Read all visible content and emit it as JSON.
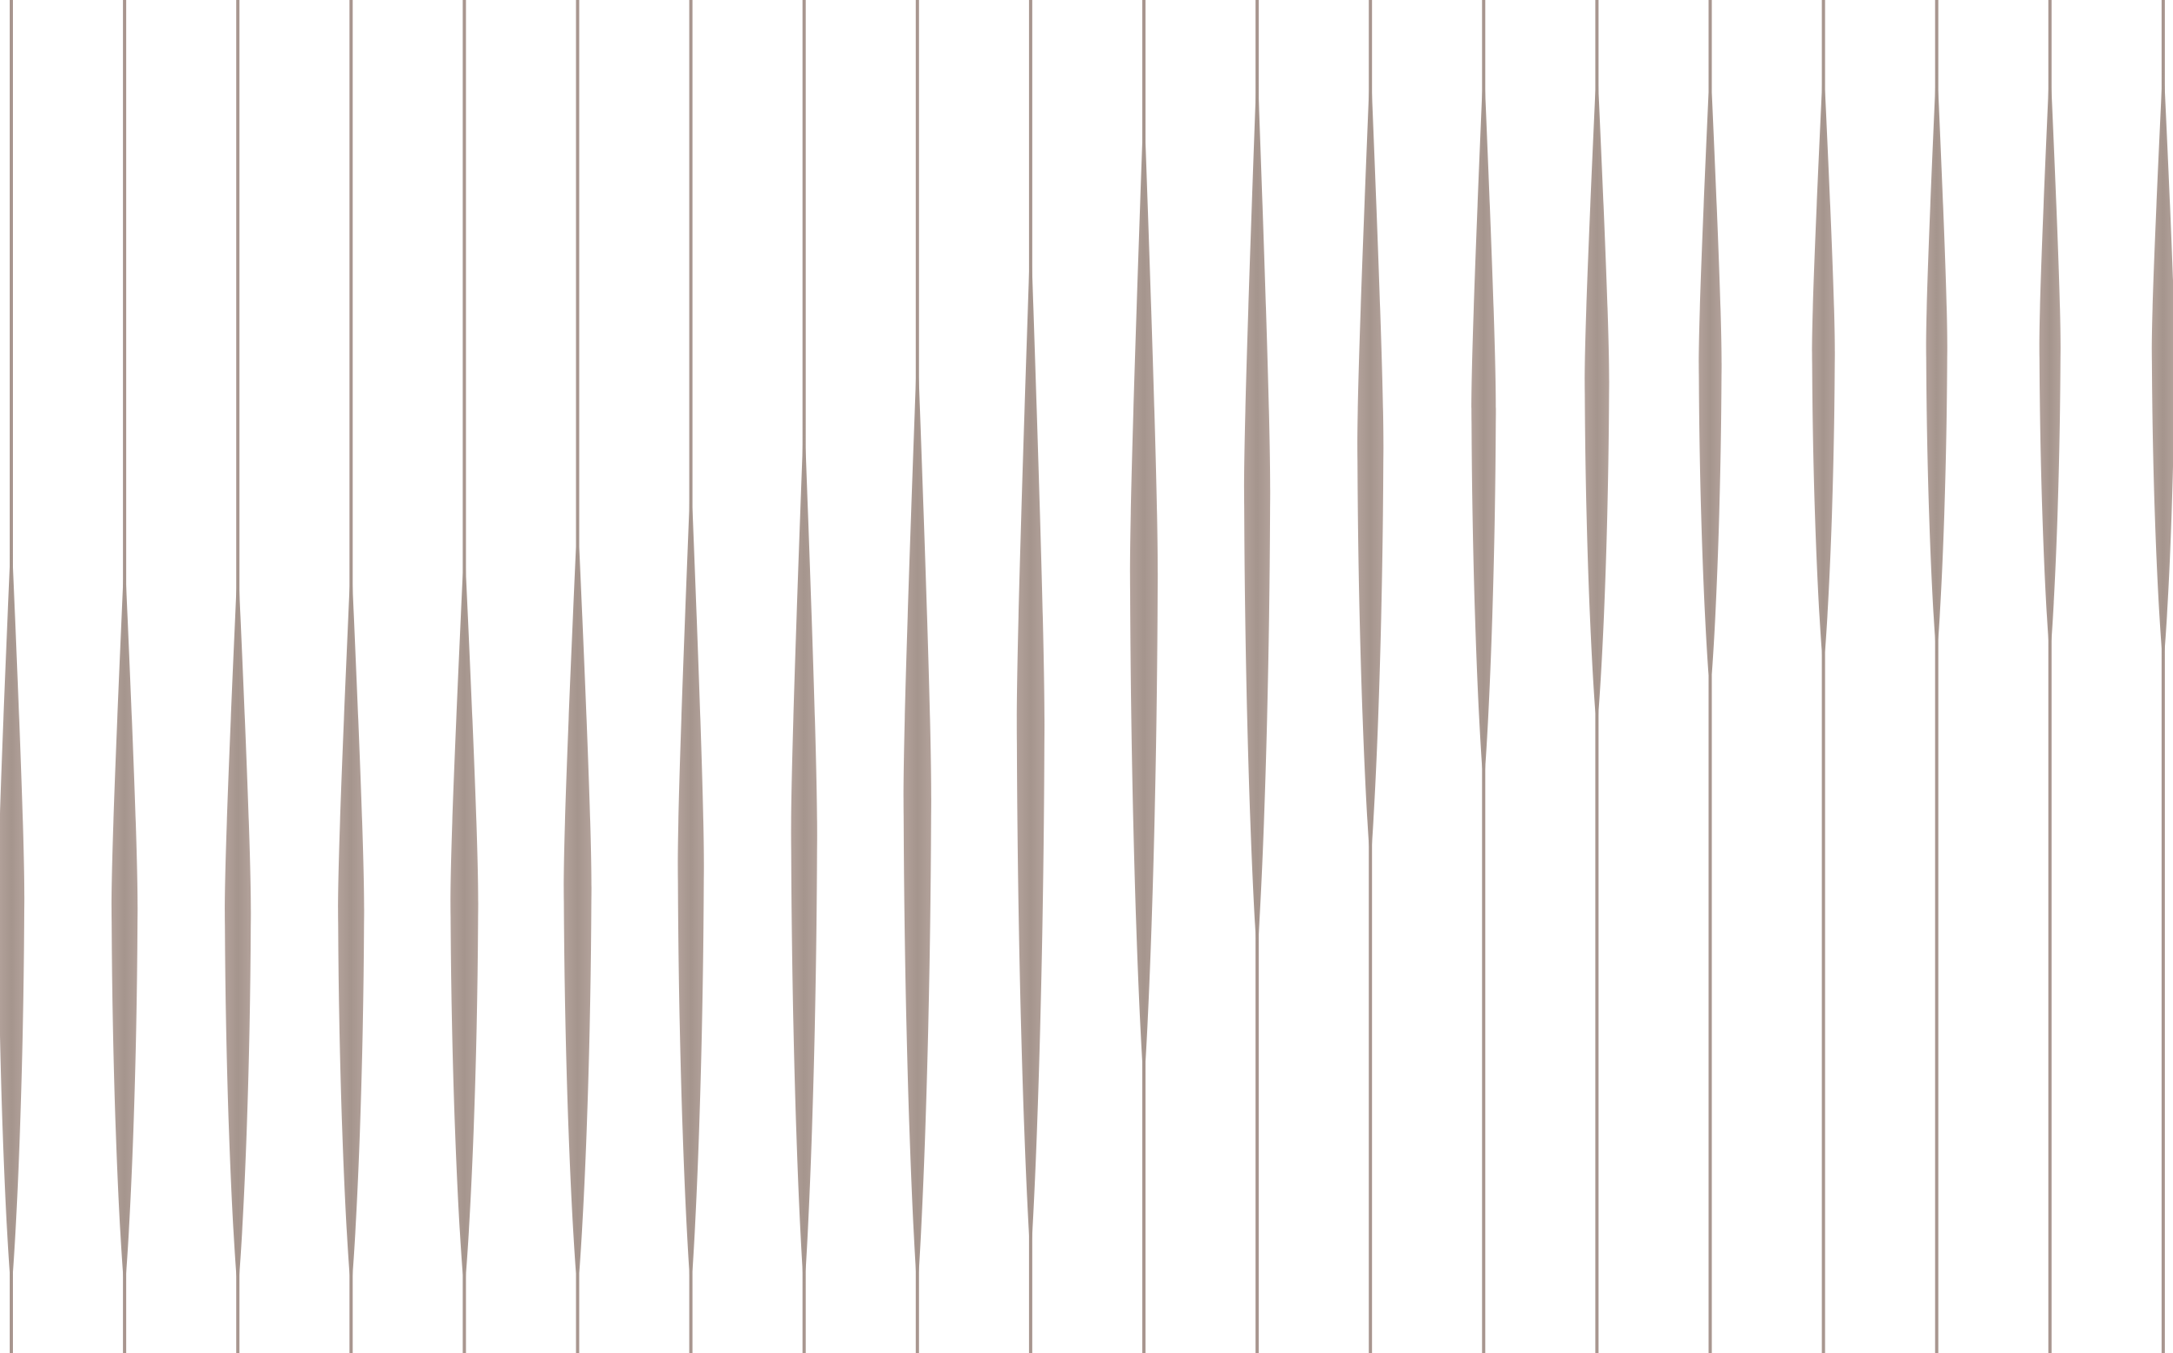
{
  "pattern": {
    "colors": {
      "background": "#ffffff",
      "stroke": "#a8968f",
      "fill_light": "#b3a29b",
      "fill_dark": "#a5958d"
    },
    "icons": {
      "stroke": "vertical-line",
      "lens": "spindle-shape"
    },
    "stroke_count": 20
  }
}
